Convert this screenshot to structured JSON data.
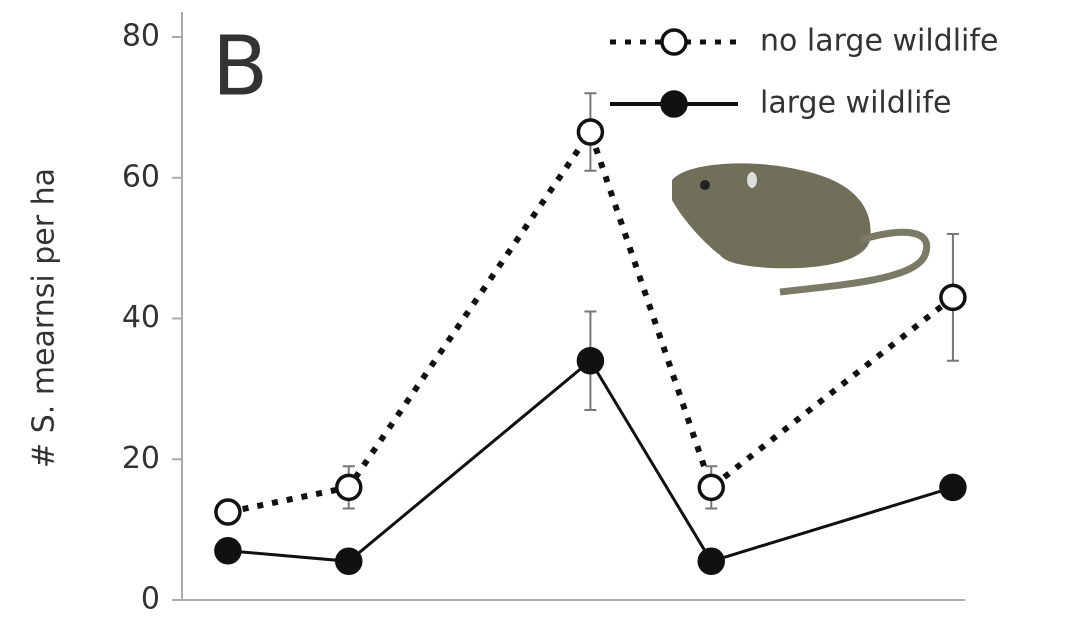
{
  "chart_data": {
    "type": "line",
    "ylabel": "# S. mearnsi per ha",
    "annotation": "B",
    "x": [
      1,
      2,
      4,
      5,
      7
    ],
    "xlim": [
      0.62,
      7.1
    ],
    "ylim": [
      0,
      80
    ],
    "yticks": [
      0,
      20,
      40,
      60,
      80
    ],
    "legend": "upper right",
    "series": [
      {
        "name": "no large wildlife",
        "color": "#111111",
        "dash": "dotted",
        "marker": "open",
        "values": [
          12.5,
          16,
          66.5,
          16,
          43
        ],
        "errors": [
          1.5,
          3,
          5.5,
          3,
          9
        ]
      },
      {
        "name": "large wildlife",
        "color": "#111111",
        "dash": "solid",
        "marker": "filled",
        "values": [
          7,
          5.5,
          34,
          5.5,
          16
        ],
        "errors": [
          0,
          0,
          7,
          0,
          0
        ]
      }
    ]
  }
}
